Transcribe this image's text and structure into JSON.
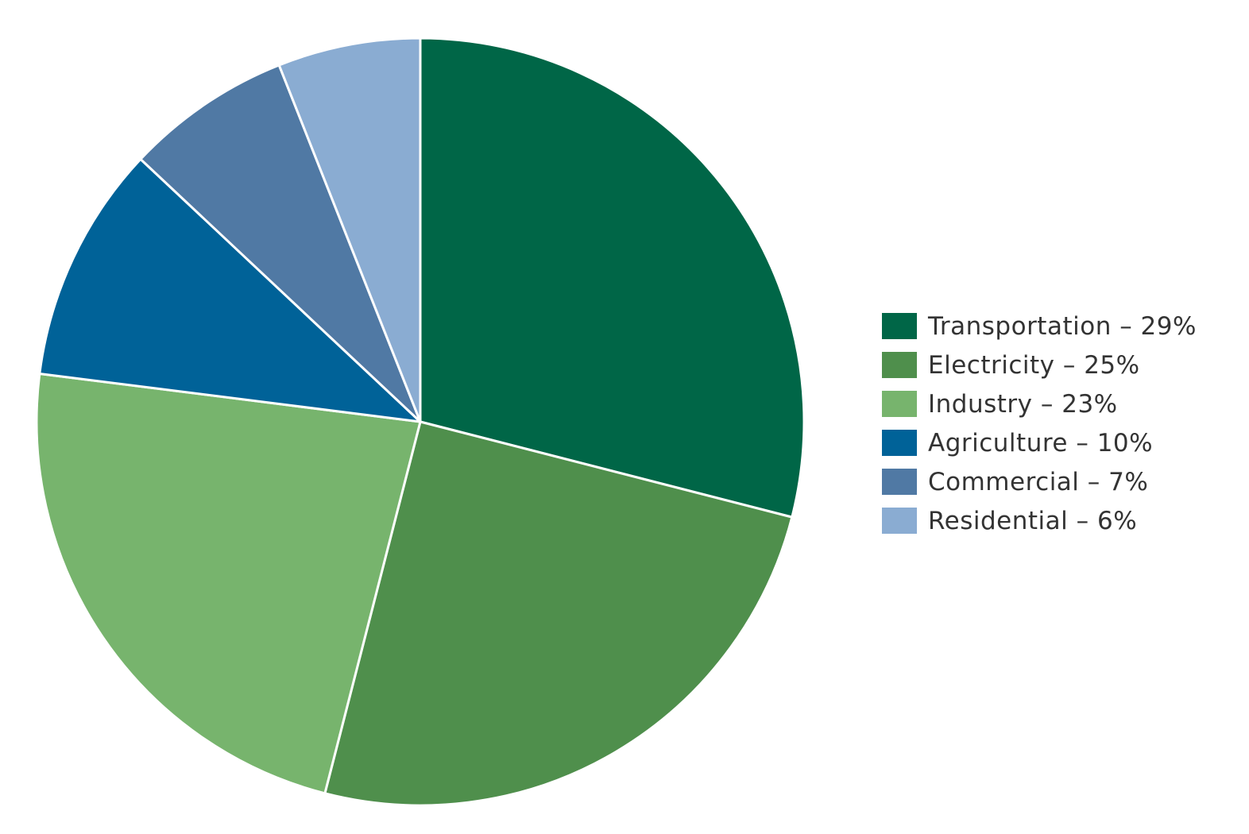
{
  "chart_data": {
    "type": "pie",
    "slices": [
      {
        "label": "Transportation",
        "value": 29,
        "legend_text": "Transportation – 29%",
        "color": "#006647"
      },
      {
        "label": "Electricity",
        "value": 25,
        "legend_text": "Electricity – 25%",
        "color": "#4F8F4C"
      },
      {
        "label": "Industry",
        "value": 23,
        "legend_text": "Industry – 23%",
        "color": "#77B46D"
      },
      {
        "label": "Agriculture",
        "value": 10,
        "legend_text": "Agriculture – 10%",
        "color": "#006298"
      },
      {
        "label": "Commercial",
        "value": 7,
        "legend_text": "Commercial – 7%",
        "color": "#5079A4"
      },
      {
        "label": "Residential",
        "value": 6,
        "legend_text": "Residential – 6%",
        "color": "#8AACD2"
      }
    ],
    "start_angle": "12 o'clock",
    "direction": "clockwise",
    "legend_position": "right",
    "title": ""
  }
}
